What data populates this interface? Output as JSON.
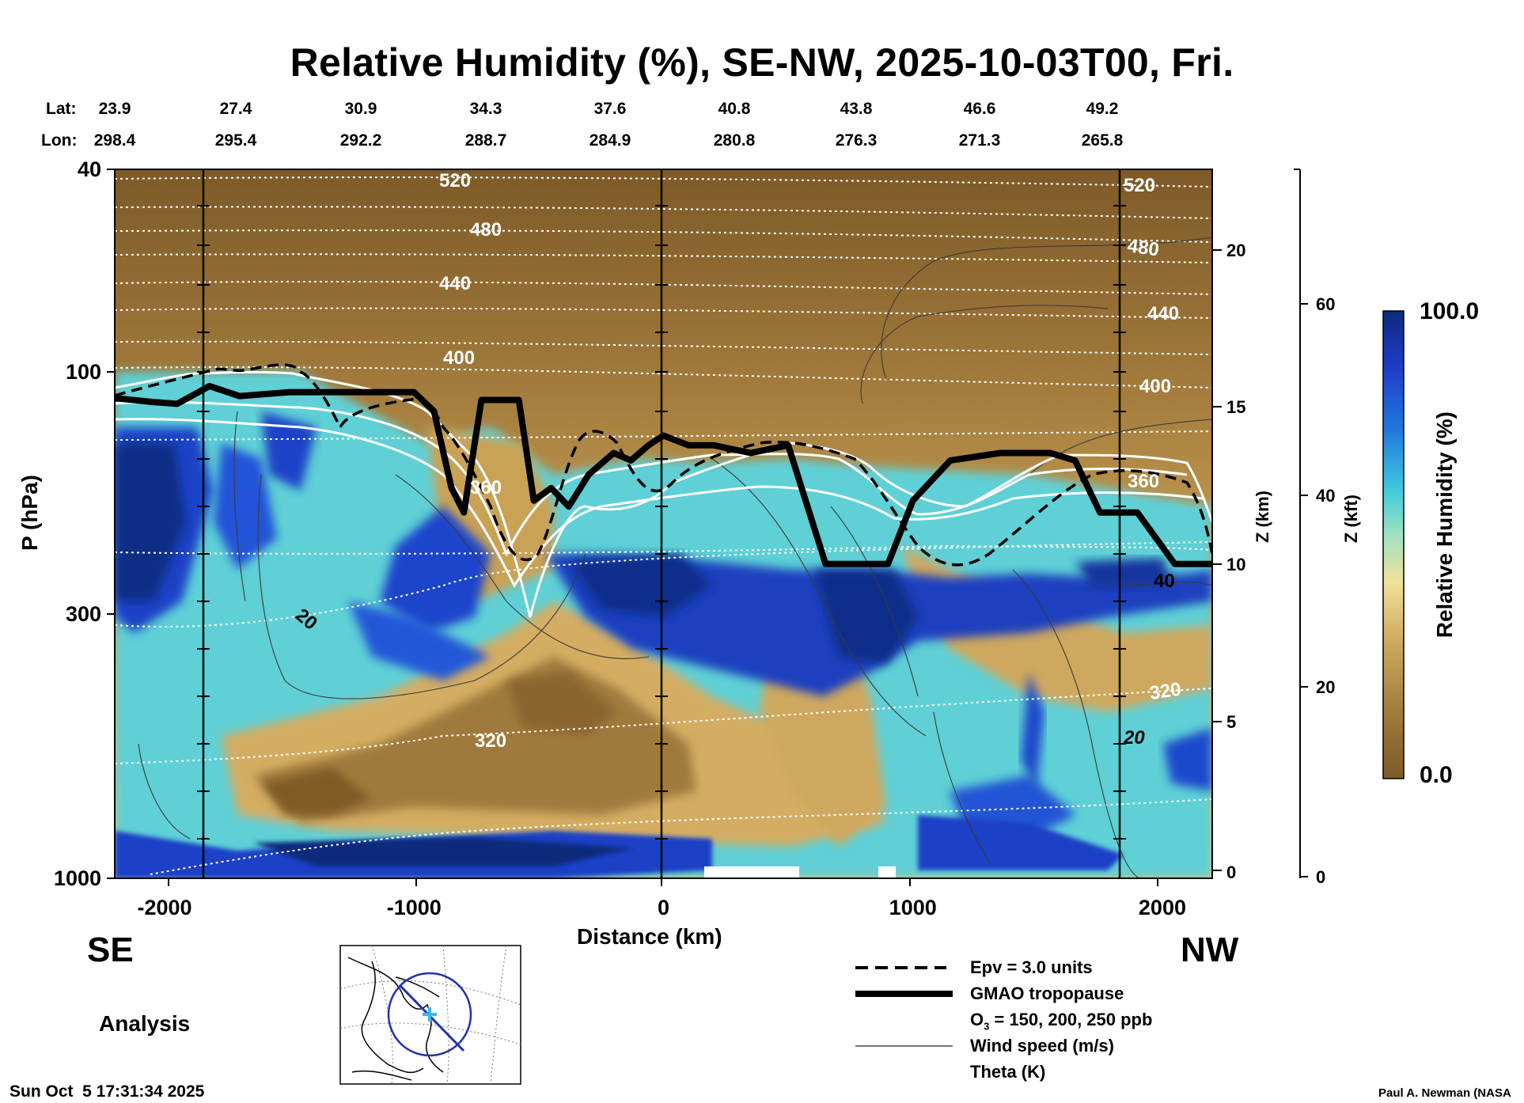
{
  "title": "Relative Humidity (%), SE-NW, 2025-10-03T00, Fri.",
  "coords": {
    "lat_label": "Lat:",
    "lon_label": "Lon:",
    "lat": [
      "23.9",
      "27.4",
      "30.9",
      "34.3",
      "37.6",
      "40.8",
      "43.8",
      "46.6",
      "49.2"
    ],
    "lon": [
      "298.4",
      "295.4",
      "292.2",
      "288.7",
      "284.9",
      "280.8",
      "276.3",
      "271.3",
      "265.8"
    ]
  },
  "chart_data": {
    "type": "heatmap",
    "title": "Relative Humidity (%), SE-NW, 2025-10-03T00, Fri.",
    "xlabel": "Distance (km)",
    "ylabel": "P (hPa)",
    "xlim": [
      -2200,
      2200
    ],
    "ylim_hPa": [
      1000,
      40
    ],
    "x_ticks": [
      -2000,
      -1000,
      0,
      1000,
      2000
    ],
    "x_tick_labels": [
      "-2000",
      "-1000",
      "0",
      "1000",
      "2000"
    ],
    "y_ticks": [
      40,
      100,
      300,
      1000
    ],
    "y_tick_labels": [
      "40",
      "100",
      "300",
      "1000"
    ],
    "z_km_label": "Z (km)",
    "z_km_ticks": [
      "0",
      "5",
      "10",
      "15",
      "20"
    ],
    "z_km_values": [
      0,
      5,
      10,
      15,
      20
    ],
    "z_kft_label": "Z (kft)",
    "z_kft_ticks": [
      "0",
      "20",
      "40",
      "60"
    ],
    "z_kft_values": [
      0,
      20,
      40,
      60
    ],
    "colorbar": {
      "label": "Relative Humidity (%)",
      "min": 0.0,
      "max": 100.0,
      "min_label": "0.0",
      "max_label": "100.0"
    },
    "theta_contour_labels": [
      "520",
      "480",
      "440",
      "400",
      "360",
      "320"
    ],
    "wind_contour_labels": [
      "20",
      "40"
    ],
    "tropopause": {
      "x": [
        -2200,
        -2050,
        -1950,
        -1820,
        -1700,
        -1500,
        -1400,
        -1150,
        -1000,
        -920,
        -850,
        -800,
        -730,
        -660,
        -580,
        -520,
        -450,
        -380,
        -300,
        -200,
        -130,
        -60,
        0,
        100,
        200,
        350,
        500,
        650,
        700,
        800,
        900,
        1000,
        1150,
        1350,
        1550,
        1650,
        1750,
        1900,
        2050,
        2200
      ],
      "p_hPa": [
        113,
        115,
        116,
        107,
        112,
        110,
        110,
        110,
        110,
        120,
        170,
        190,
        114,
        114,
        114,
        180,
        170,
        185,
        160,
        145,
        150,
        140,
        134,
        140,
        140,
        145,
        140,
        240,
        240,
        240,
        240,
        180,
        150,
        145,
        145,
        150,
        190,
        190,
        240,
        240
      ]
    }
  },
  "labels": {
    "se": "SE",
    "nw": "NW",
    "analysis": "Analysis",
    "timestamp": "Sun Oct  5 17:31:34 2025",
    "credit": "Paul A. Newman (NASA"
  },
  "legend": {
    "items": [
      {
        "key": "epv",
        "text": "Epv = 3.0 units"
      },
      {
        "key": "tropopause",
        "text": "GMAO tropopause"
      },
      {
        "key": "o3_prefix",
        "text": "O"
      },
      {
        "key": "o3_sub",
        "text": "3"
      },
      {
        "key": "o3_suffix",
        "text": " = 150, 200, 250 ppb"
      },
      {
        "key": "wind",
        "text": "Wind speed (m/s)"
      },
      {
        "key": "theta",
        "text": "Theta (K)"
      }
    ]
  },
  "colors": {
    "dry": "#7f5a26",
    "tan": "#c9a256",
    "cyan": "#46c8dc",
    "blue": "#1c3fc8",
    "navy": "#0b2a82",
    "legend_bg": "#a8843e"
  }
}
